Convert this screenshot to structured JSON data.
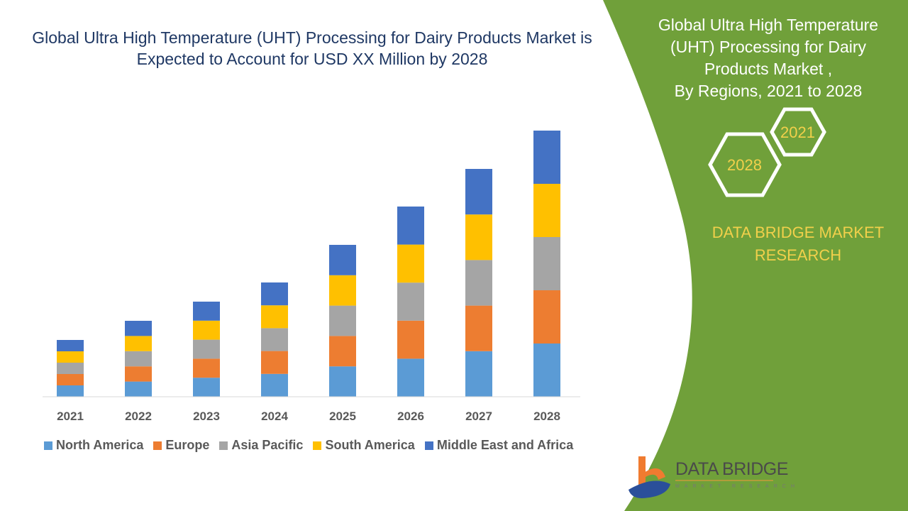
{
  "title": "Global Ultra High Temperature (UHT) Processing for Dairy Products Market is Expected to Account for USD XX Million by 2028",
  "side_panel": {
    "title_lines": [
      "Global Ultra High Temperature",
      "(UHT) Processing for Dairy",
      "Products Market ,",
      "By Regions, 2021 to 2028"
    ],
    "hex_start": "2021",
    "hex_end": "2028",
    "brand_lines": [
      "DATA BRIDGE MARKET",
      "RESEARCH"
    ],
    "background_color": "#70a03a"
  },
  "logo": {
    "name": "DATA BRIDGE",
    "tagline": "MARKET RESEARCH"
  },
  "chart_data": {
    "type": "bar",
    "stacked": true,
    "title": "Global Ultra High Temperature (UHT) Processing for Dairy Products Market is Expected to Account for USD XX Million by 2028",
    "categories": [
      "2021",
      "2022",
      "2023",
      "2024",
      "2025",
      "2026",
      "2027",
      "2028"
    ],
    "series": [
      {
        "name": "North America",
        "color": "#5b9bd5",
        "values": [
          16,
          21.4,
          26.8,
          32.2,
          42.8,
          53.6,
          64.2,
          75
        ]
      },
      {
        "name": "Europe",
        "color": "#ed7d31",
        "values": [
          16,
          21.4,
          26.8,
          32.2,
          42.8,
          53.6,
          64.2,
          75
        ]
      },
      {
        "name": "Asia Pacific",
        "color": "#a5a5a5",
        "values": [
          16,
          21.4,
          26.8,
          32.2,
          42.8,
          53.6,
          64.2,
          75
        ]
      },
      {
        "name": "South America",
        "color": "#ffc000",
        "values": [
          16,
          21.4,
          26.8,
          32.2,
          42.8,
          53.6,
          64.2,
          75
        ]
      },
      {
        "name": "Middle East and Africa",
        "color": "#4472c4",
        "values": [
          16,
          21.4,
          26.8,
          32.2,
          42.8,
          53.6,
          64.2,
          75
        ]
      }
    ],
    "y_axis_visible": false,
    "grid": false,
    "legend_position": "bottom"
  }
}
